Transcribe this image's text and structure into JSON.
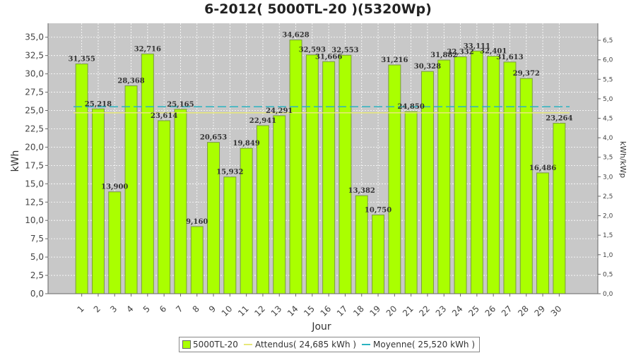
{
  "chart_data": {
    "type": "bar",
    "title": "6-2012( 5000TL-20 )(5320Wp)",
    "xlabel": "Jour",
    "ylabel": "kWh",
    "y2label": "kWh/kWp",
    "ylim": [
      0,
      36.9
    ],
    "y2lim": [
      0,
      6.936
    ],
    "yticks": [
      "0,0",
      "2,5",
      "5,0",
      "7,5",
      "10,0",
      "12,5",
      "15,0",
      "17,5",
      "20,0",
      "22,5",
      "25,0",
      "27,5",
      "30,0",
      "32,5",
      "35,0"
    ],
    "y2ticks": [
      "0,0",
      "0,5",
      "1,0",
      "1,5",
      "2,0",
      "2,5",
      "3,0",
      "3,5",
      "4,0",
      "4,5",
      "5,0",
      "5,5",
      "6,0",
      "6,5"
    ],
    "categories": [
      "1",
      "2",
      "3",
      "4",
      "5",
      "6",
      "7",
      "8",
      "9",
      "10",
      "11",
      "12",
      "13",
      "14",
      "15",
      "16",
      "17",
      "18",
      "19",
      "20",
      "21",
      "22",
      "23",
      "24",
      "25",
      "26",
      "27",
      "28",
      "29",
      "30"
    ],
    "series": [
      {
        "name": "5000TL-20",
        "values": [
          31.355,
          25.218,
          13.9,
          28.368,
          32.716,
          23.614,
          25.165,
          9.16,
          20.653,
          15.932,
          19.849,
          22.941,
          24.291,
          34.628,
          32.593,
          31.666,
          32.553,
          13.382,
          10.75,
          31.216,
          24.85,
          30.328,
          31.882,
          32.332,
          33.111,
          32.401,
          31.613,
          29.372,
          16.486,
          23.264
        ],
        "labels": [
          "31,355",
          "25,218",
          "13,900",
          "28,368",
          "32,716",
          "23,614",
          "25,165",
          "9,160",
          "20,653",
          "15,932",
          "19,849",
          "22,941",
          "24,291",
          "34,628",
          "32,593",
          "31,666",
          "32,553",
          "13,382",
          "10,750",
          "31,216",
          "24,850",
          "30,328",
          "31,882",
          "32,332",
          "33,111",
          "32,401",
          "31,613",
          "29,372",
          "16,486",
          "23,264"
        ]
      }
    ],
    "reference_lines": [
      {
        "name": "Attendus",
        "value": 24.685,
        "legend": "Attendus( 24,685 kWh )",
        "color": "#e8e87a",
        "style": "solid"
      },
      {
        "name": "Moyenne",
        "value": 25.52,
        "legend": "Moyenne( 25,520 kWh )",
        "color": "#2bb3c0",
        "style": "dashed"
      }
    ],
    "bar_color": "#aaff00",
    "bar_edge": "#7a9a40",
    "plot_bg": "#c8c8c8",
    "grid": true,
    "legend_position": "bottom"
  }
}
